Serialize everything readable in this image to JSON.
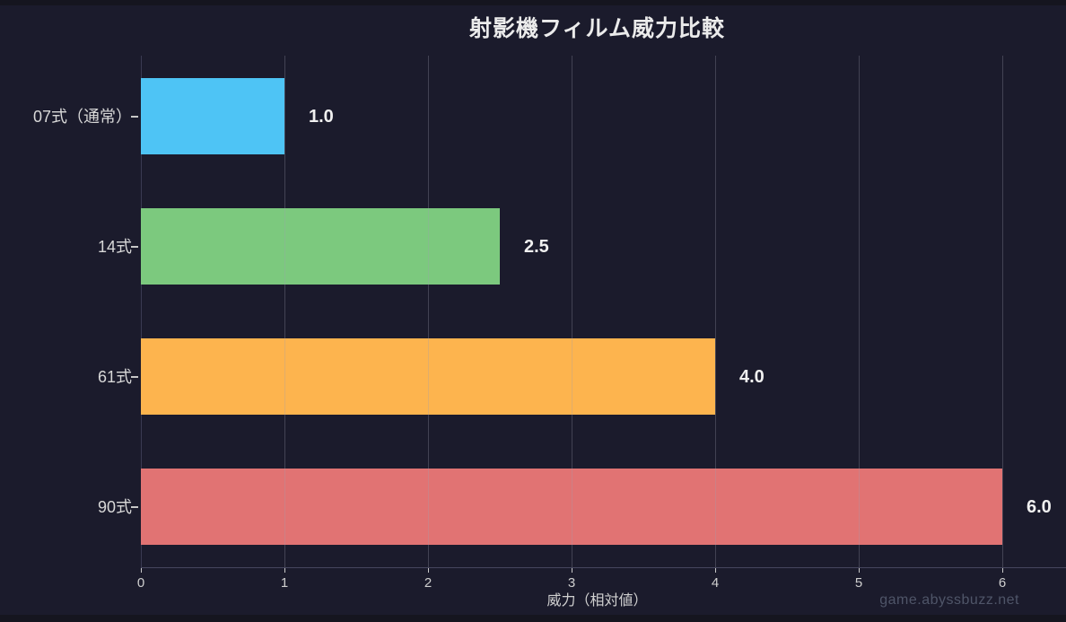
{
  "figure": {
    "watermark": "game.abyssbuzz.net"
  },
  "chart_data": {
    "type": "bar",
    "orientation": "horizontal",
    "title": "射影機フィルム威力比較",
    "xlabel": "威力（相対値）",
    "ylabel": "",
    "categories": [
      "07式（通常）",
      "14式",
      "61式",
      "90式"
    ],
    "values": [
      1.0,
      2.5,
      4.0,
      6.0
    ],
    "value_labels": [
      "1.0",
      "2.5",
      "4.0",
      "6.0"
    ],
    "bar_colors": [
      "#4ec4f5",
      "#7cc97e",
      "#fdb44e",
      "#e17373"
    ],
    "x_ticks": [
      0,
      1,
      2,
      3,
      4,
      5,
      6
    ],
    "xlim": [
      0,
      6.35
    ],
    "grid": true,
    "grid_axis": "x",
    "grid_above_bars": true,
    "legend": false,
    "background": "#1b1b2c",
    "text_color": "#d8d8d8"
  }
}
